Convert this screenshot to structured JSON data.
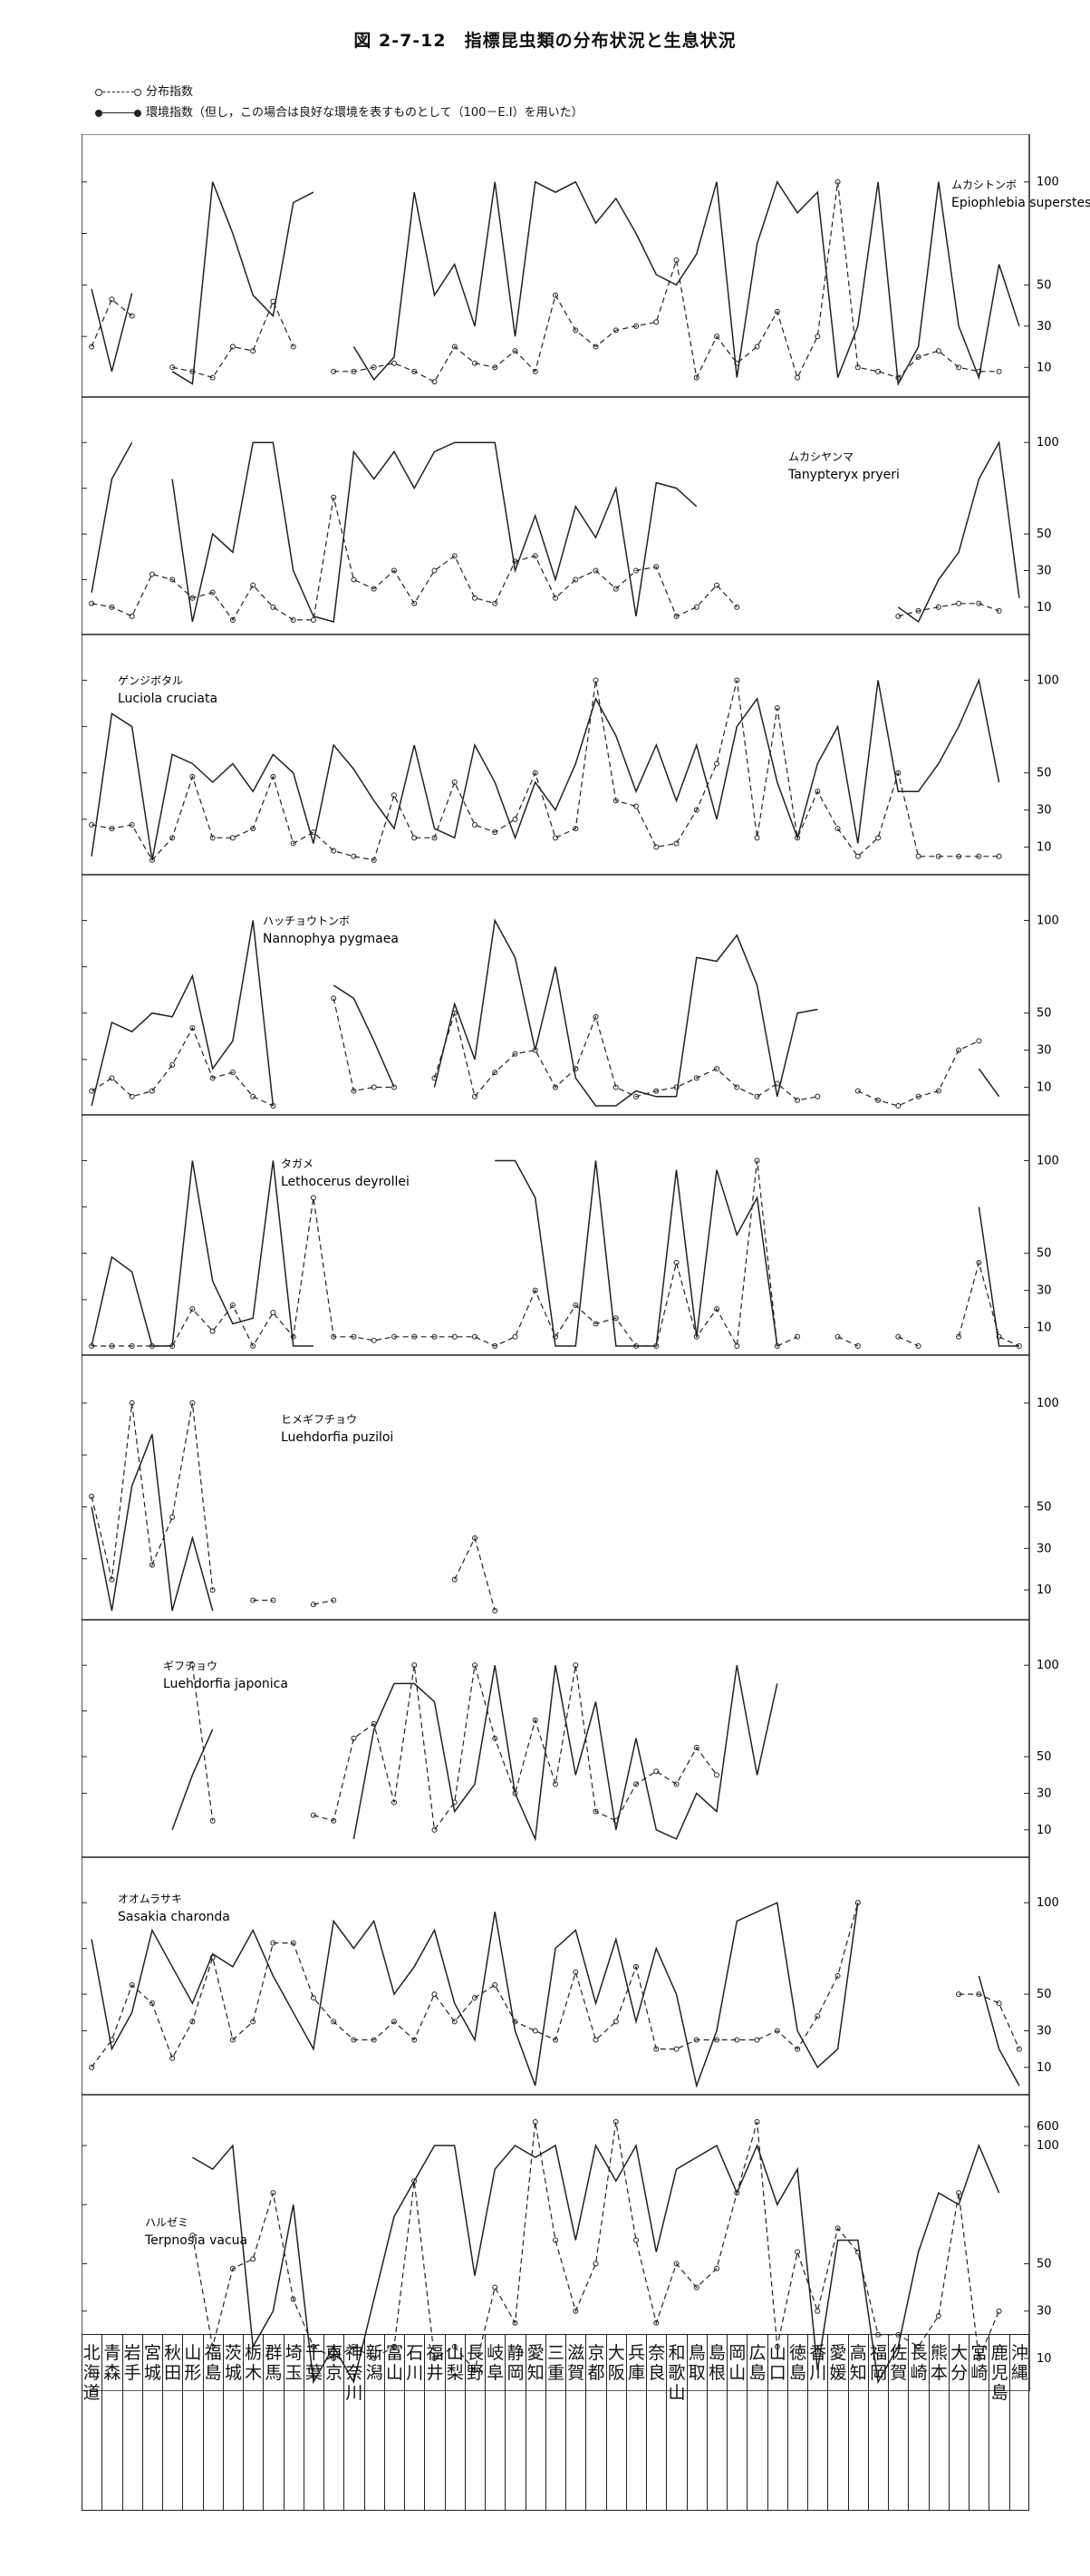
{
  "title": "図 2-7-12　指標昆虫類の分布状況と生息状況",
  "legend": {
    "dist": "分布指数",
    "hab": "環境指数（但し，この場合は良好な環境を表すものとして（100－E.I）を用いた）"
  },
  "prefectures": [
    "北海道",
    "青森",
    "岩手",
    "宮城",
    "秋田",
    "山形",
    "福島",
    "茨城",
    "栃木",
    "群馬",
    "埼玉",
    "千葉",
    "東京",
    "神奈川",
    "新潟",
    "富山",
    "石川",
    "福井",
    "山梨",
    "長野",
    "岐阜",
    "静岡",
    "愛知",
    "三重",
    "滋賀",
    "京都",
    "大阪",
    "兵庫",
    "奈良",
    "和歌山",
    "鳥取",
    "島根",
    "岡山",
    "広島",
    "山口",
    "徳島",
    "香川",
    "愛媛",
    "高知",
    "福岡",
    "佐賀",
    "長崎",
    "熊本",
    "大分",
    "宮崎",
    "鹿児島",
    "沖縄"
  ],
  "chart_data": [
    {
      "type": "line",
      "jp_name": "ムカシトンボ",
      "latin_name": "Epiophlebia superstes",
      "yticks_left": [
        "100",
        "75",
        "50",
        "25"
      ],
      "yticks_right": [
        "100",
        "50",
        "30",
        "10"
      ],
      "series": [
        {
          "name": "分布指数",
          "values": [
            20,
            43,
            35,
            null,
            10,
            8,
            5,
            20,
            18,
            42,
            20,
            null,
            8,
            8,
            10,
            12,
            8,
            3,
            20,
            12,
            10,
            18,
            8,
            45,
            28,
            20,
            28,
            30,
            32,
            62,
            5,
            25,
            12,
            20,
            37,
            5,
            25,
            100,
            10,
            8,
            5,
            15,
            18,
            10,
            8,
            8,
            null
          ]
        },
        {
          "name": "環境指数",
          "values": [
            48,
            8,
            46,
            null,
            8,
            2,
            100,
            75,
            45,
            35,
            90,
            95,
            null,
            20,
            4,
            15,
            95,
            45,
            60,
            30,
            100,
            25,
            100,
            95,
            100,
            80,
            92,
            75,
            55,
            50,
            65,
            100,
            5,
            70,
            100,
            85,
            95,
            5,
            30,
            100,
            2,
            20,
            100,
            30,
            5,
            60,
            30
          ]
        }
      ]
    },
    {
      "type": "line",
      "jp_name": "ムカシヤンマ",
      "latin_name": "Tanypteryx pryeri",
      "yticks_left": [
        "100",
        "75",
        "50",
        "25"
      ],
      "yticks_right": [
        "100",
        "50",
        "30",
        "10"
      ],
      "series": [
        {
          "name": "分布指数",
          "values": [
            12,
            10,
            5,
            28,
            25,
            15,
            18,
            3,
            22,
            10,
            3,
            3,
            70,
            25,
            20,
            30,
            12,
            30,
            38,
            15,
            12,
            35,
            38,
            15,
            25,
            30,
            20,
            30,
            32,
            5,
            10,
            22,
            10,
            null,
            null,
            null,
            null,
            null,
            null,
            null,
            5,
            8,
            10,
            12,
            12,
            8,
            null
          ]
        },
        {
          "name": "環境指数",
          "values": [
            18,
            80,
            100,
            null,
            80,
            2,
            50,
            40,
            100,
            100,
            30,
            5,
            2,
            95,
            80,
            95,
            75,
            95,
            100,
            100,
            100,
            30,
            60,
            25,
            65,
            48,
            75,
            5,
            78,
            75,
            65,
            null,
            null,
            null,
            null,
            null,
            null,
            null,
            null,
            null,
            10,
            2,
            25,
            40,
            80,
            100,
            15
          ]
        }
      ]
    },
    {
      "type": "line",
      "jp_name": "ゲンジボタル",
      "latin_name": "Luciola cruciata",
      "yticks_left": [
        "100",
        "75",
        "50",
        "25"
      ],
      "yticks_right": [
        "100",
        "50",
        "30",
        "10"
      ],
      "series": [
        {
          "name": "分布指数",
          "values": [
            22,
            20,
            22,
            3,
            15,
            48,
            15,
            15,
            20,
            48,
            12,
            18,
            8,
            5,
            3,
            38,
            15,
            15,
            45,
            22,
            18,
            25,
            50,
            15,
            20,
            100,
            35,
            32,
            10,
            12,
            30,
            55,
            100,
            15,
            85,
            15,
            40,
            20,
            5,
            15,
            50,
            5,
            5,
            5,
            5,
            5,
            null
          ]
        },
        {
          "name": "環境指数",
          "values": [
            5,
            82,
            75,
            3,
            60,
            55,
            45,
            55,
            40,
            60,
            50,
            12,
            65,
            52,
            35,
            20,
            65,
            20,
            15,
            65,
            45,
            15,
            45,
            30,
            55,
            90,
            70,
            40,
            65,
            35,
            65,
            25,
            75,
            90,
            45,
            15,
            55,
            75,
            12,
            100,
            40,
            40,
            55,
            75,
            100,
            45,
            null
          ]
        }
      ]
    },
    {
      "type": "line",
      "jp_name": "ハッチョウトンボ",
      "latin_name": "Nannophya pygmaea",
      "yticks_left": [
        "100",
        "75",
        "50",
        "25"
      ],
      "yticks_right": [
        "100",
        "50",
        "30",
        "10"
      ],
      "series": [
        {
          "name": "分布指数",
          "values": [
            8,
            15,
            5,
            8,
            22,
            42,
            15,
            18,
            5,
            0,
            null,
            null,
            58,
            8,
            10,
            10,
            null,
            15,
            50,
            5,
            18,
            28,
            30,
            10,
            20,
            48,
            10,
            5,
            8,
            10,
            15,
            20,
            10,
            5,
            12,
            3,
            5,
            null,
            8,
            3,
            0,
            5,
            8,
            30,
            35,
            null,
            null
          ]
        },
        {
          "name": "環境指数",
          "values": [
            0,
            45,
            40,
            50,
            48,
            70,
            20,
            35,
            100,
            0,
            null,
            null,
            65,
            58,
            35,
            10,
            null,
            10,
            55,
            25,
            100,
            80,
            30,
            75,
            15,
            0,
            0,
            8,
            5,
            5,
            80,
            78,
            92,
            65,
            5,
            50,
            52,
            null,
            22,
            null,
            null,
            null,
            null,
            null,
            20,
            5,
            null
          ]
        }
      ]
    },
    {
      "type": "line",
      "jp_name": "タガメ",
      "latin_name": "Lethocerus deyrollei",
      "yticks_left": [
        "100",
        "75",
        "50",
        "25"
      ],
      "yticks_right": [
        "100",
        "50",
        "30",
        "10"
      ],
      "series": [
        {
          "name": "分布指数",
          "values": [
            0,
            0,
            0,
            0,
            0,
            20,
            8,
            22,
            0,
            18,
            5,
            80,
            5,
            5,
            3,
            5,
            5,
            5,
            5,
            5,
            0,
            5,
            30,
            5,
            22,
            12,
            15,
            0,
            0,
            45,
            5,
            20,
            0,
            100,
            0,
            5,
            null,
            5,
            0,
            null,
            5,
            0,
            null,
            5,
            45,
            5,
            0
          ]
        },
        {
          "name": "環境指数",
          "values": [
            0,
            48,
            40,
            0,
            0,
            100,
            35,
            12,
            15,
            100,
            0,
            0,
            null,
            null,
            null,
            null,
            null,
            null,
            null,
            null,
            100,
            100,
            80,
            0,
            0,
            100,
            0,
            0,
            0,
            95,
            5,
            95,
            60,
            80,
            0,
            null,
            null,
            null,
            null,
            null,
            null,
            null,
            null,
            null,
            75,
            0,
            0
          ]
        }
      ]
    },
    {
      "type": "line",
      "jp_name": "ヒメギフチョウ",
      "latin_name": "Luehdorfia puziloi",
      "yticks_left": [
        "100",
        "75",
        "50",
        "25"
      ],
      "yticks_right": [
        "100",
        "50",
        "30",
        "10"
      ],
      "series": [
        {
          "name": "分布指数",
          "values": [
            55,
            15,
            100,
            22,
            45,
            100,
            10,
            null,
            5,
            5,
            null,
            3,
            5,
            null,
            null,
            null,
            null,
            null,
            15,
            35,
            0,
            null,
            null,
            null,
            null,
            null,
            null,
            null,
            null,
            null,
            null,
            null,
            null,
            null,
            null,
            null,
            null,
            null,
            null,
            null,
            null,
            null,
            null,
            null,
            null,
            null,
            null
          ]
        },
        {
          "name": "環境指数",
          "values": [
            50,
            0,
            60,
            85,
            0,
            35,
            0,
            null,
            null,
            null,
            null,
            null,
            null,
            null,
            null,
            null,
            null,
            null,
            null,
            null,
            null,
            null,
            null,
            null,
            null,
            null,
            null,
            null,
            null,
            null,
            null,
            null,
            null,
            null,
            null,
            null,
            null,
            null,
            null,
            null,
            null,
            null,
            null,
            null,
            null,
            null,
            null
          ]
        }
      ]
    },
    {
      "type": "line",
      "jp_name": "ギフチョウ",
      "latin_name": "Luehdorfia japonica",
      "yticks_left": [
        "100",
        "75",
        "50",
        "30"
      ],
      "yticks_right": [
        "100",
        "50",
        "30",
        "10"
      ],
      "series": [
        {
          "name": "分布指数",
          "values": [
            null,
            null,
            null,
            null,
            null,
            100,
            15,
            null,
            null,
            null,
            null,
            18,
            15,
            60,
            68,
            25,
            100,
            10,
            25,
            100,
            60,
            30,
            70,
            35,
            100,
            20,
            15,
            35,
            42,
            35,
            55,
            40,
            null,
            null,
            null,
            null,
            null,
            null,
            null,
            null,
            null,
            null,
            null,
            null,
            null,
            null,
            null
          ]
        },
        {
          "name": "環境指数",
          "values": [
            null,
            null,
            null,
            null,
            10,
            40,
            65,
            null,
            null,
            null,
            null,
            null,
            null,
            5,
            65,
            90,
            90,
            80,
            20,
            35,
            100,
            30,
            5,
            100,
            40,
            80,
            10,
            60,
            10,
            5,
            30,
            20,
            100,
            40,
            90,
            null,
            null,
            null,
            null,
            null,
            null,
            null,
            null,
            null,
            null,
            null,
            null
          ]
        }
      ]
    },
    {
      "type": "line",
      "jp_name": "オオムラサキ",
      "latin_name": "Sasakia charonda",
      "yticks_left": [
        "100",
        "75",
        "50",
        "30"
      ],
      "yticks_right": [
        "100",
        "50",
        "30",
        "10"
      ],
      "series": [
        {
          "name": "分布指数",
          "values": [
            10,
            25,
            55,
            45,
            15,
            35,
            70,
            25,
            35,
            78,
            78,
            48,
            35,
            25,
            25,
            35,
            25,
            50,
            35,
            48,
            55,
            35,
            30,
            25,
            62,
            25,
            35,
            65,
            20,
            20,
            25,
            25,
            25,
            25,
            30,
            20,
            38,
            60,
            100,
            null,
            null,
            null,
            null,
            50,
            50,
            45,
            20
          ]
        },
        {
          "name": "環境指数",
          "values": [
            80,
            20,
            40,
            85,
            65,
            45,
            72,
            65,
            85,
            60,
            40,
            20,
            90,
            75,
            90,
            50,
            65,
            85,
            45,
            25,
            95,
            30,
            0,
            75,
            85,
            45,
            80,
            35,
            75,
            50,
            0,
            30,
            90,
            95,
            100,
            30,
            10,
            20,
            100,
            null,
            null,
            null,
            null,
            null,
            60,
            20,
            0
          ]
        }
      ]
    },
    {
      "type": "line",
      "jp_name": "ハルゼミ",
      "latin_name": "Terpnosia vacua",
      "yticks_left": [
        "100",
        "75",
        "50",
        "30"
      ],
      "yticks_right": [
        "600",
        "100",
        "50",
        "30",
        "10"
      ],
      "series": [
        {
          "name": "分布指数",
          "values": [
            null,
            null,
            null,
            null,
            null,
            62,
            15,
            48,
            52,
            80,
            35,
            15,
            10,
            15,
            10,
            15,
            85,
            10,
            15,
            5,
            40,
            25,
            120,
            60,
            30,
            50,
            350,
            60,
            25,
            50,
            40,
            48,
            80,
            110,
            15,
            55,
            30,
            65,
            55,
            20,
            20,
            15,
            28,
            80,
            10,
            30,
            null
          ]
        },
        {
          "name": "環境指数",
          "values": [
            null,
            null,
            null,
            null,
            null,
            95,
            90,
            100,
            15,
            30,
            75,
            0,
            15,
            0,
            35,
            70,
            85,
            100,
            100,
            45,
            90,
            100,
            95,
            100,
            60,
            100,
            85,
            100,
            55,
            90,
            95,
            100,
            80,
            100,
            75,
            90,
            5,
            60,
            60,
            0,
            15,
            55,
            80,
            75,
            100,
            80,
            null
          ]
        }
      ]
    }
  ]
}
